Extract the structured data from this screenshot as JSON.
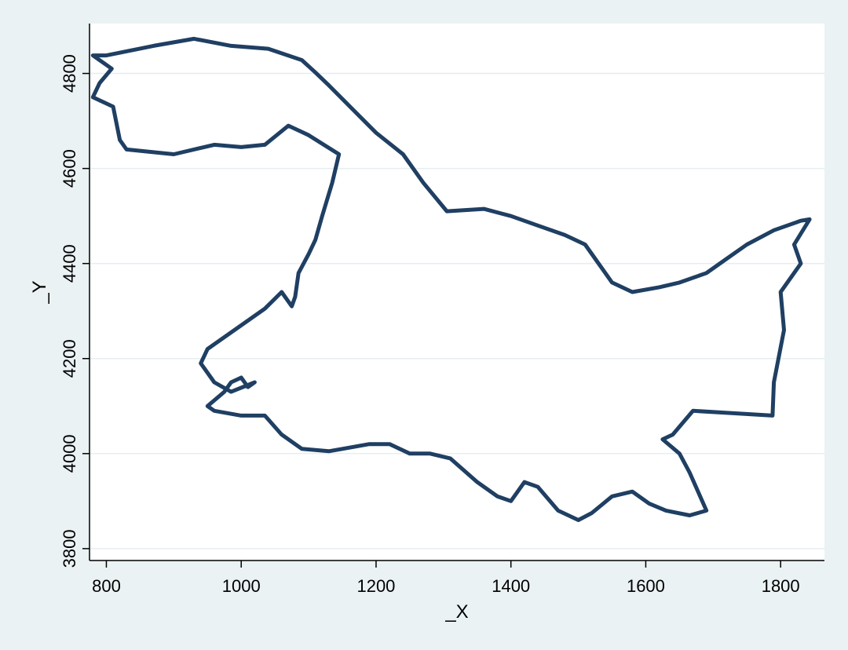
{
  "chart_data": {
    "type": "line",
    "title": "",
    "xlabel": "_X",
    "ylabel": "_Y",
    "xlim": [
      775,
      1865
    ],
    "ylim": [
      3775,
      4905
    ],
    "x_ticks": [
      800,
      1000,
      1200,
      1400,
      1600,
      1800
    ],
    "x_tick_labels": [
      "800",
      "1000",
      "1200",
      "1400",
      "1600",
      "1800"
    ],
    "y_ticks": [
      3800,
      4000,
      4200,
      4400,
      4600,
      4800
    ],
    "y_tick_labels": [
      "3800",
      "4000",
      "4200",
      "4400",
      "4600",
      "4800"
    ],
    "grid": "horizontal",
    "legend": "none",
    "colors": {
      "line": "#1f3f63",
      "plot_background": "#ffffff",
      "page_background": "#eaf2f3",
      "gridline": "#e6eef0"
    },
    "series": [
      {
        "points": [
          [
            800,
            4838
          ],
          [
            870,
            4858
          ],
          [
            930,
            4873
          ],
          [
            985,
            4858
          ],
          [
            1040,
            4852
          ],
          [
            1090,
            4828
          ],
          [
            1110,
            4802
          ],
          [
            1130,
            4775
          ],
          [
            1165,
            4725
          ],
          [
            1200,
            4675
          ],
          [
            1240,
            4630
          ],
          [
            1270,
            4570
          ],
          [
            1305,
            4510
          ],
          [
            1360,
            4515
          ],
          [
            1400,
            4500
          ],
          [
            1440,
            4480
          ],
          [
            1480,
            4460
          ],
          [
            1510,
            4440
          ],
          [
            1550,
            4360
          ],
          [
            1580,
            4340
          ],
          [
            1620,
            4350
          ],
          [
            1650,
            4360
          ],
          [
            1690,
            4380
          ],
          [
            1720,
            4410
          ],
          [
            1750,
            4440
          ],
          [
            1790,
            4470
          ],
          [
            1830,
            4490
          ],
          [
            1843,
            4493
          ],
          [
            1820,
            4440
          ],
          [
            1830,
            4400
          ],
          [
            1800,
            4340
          ],
          [
            1805,
            4260
          ],
          [
            1790,
            4150
          ],
          [
            1788,
            4080
          ],
          [
            1730,
            4085
          ],
          [
            1670,
            4090
          ],
          [
            1640,
            4040
          ],
          [
            1625,
            4030
          ],
          [
            1650,
            4000
          ],
          [
            1665,
            3960
          ],
          [
            1690,
            3880
          ],
          [
            1665,
            3870
          ],
          [
            1630,
            3880
          ],
          [
            1605,
            3895
          ],
          [
            1580,
            3920
          ],
          [
            1550,
            3910
          ],
          [
            1520,
            3875
          ],
          [
            1500,
            3860
          ],
          [
            1470,
            3880
          ],
          [
            1440,
            3930
          ],
          [
            1420,
            3940
          ],
          [
            1400,
            3900
          ],
          [
            1380,
            3910
          ],
          [
            1350,
            3940
          ],
          [
            1310,
            3990
          ],
          [
            1280,
            4000
          ],
          [
            1250,
            4000
          ],
          [
            1220,
            4020
          ],
          [
            1190,
            4020
          ],
          [
            1150,
            4010
          ],
          [
            1130,
            4005
          ],
          [
            1090,
            4010
          ],
          [
            1060,
            4040
          ],
          [
            1035,
            4080
          ],
          [
            1000,
            4080
          ],
          [
            960,
            4090
          ],
          [
            950,
            4100
          ],
          [
            975,
            4130
          ],
          [
            985,
            4150
          ],
          [
            1000,
            4160
          ],
          [
            1010,
            4140
          ],
          [
            1020,
            4150
          ],
          [
            985,
            4130
          ],
          [
            960,
            4150
          ],
          [
            940,
            4190
          ],
          [
            950,
            4220
          ],
          [
            990,
            4260
          ],
          [
            1035,
            4305
          ],
          [
            1060,
            4340
          ],
          [
            1075,
            4310
          ],
          [
            1080,
            4330
          ],
          [
            1085,
            4380
          ],
          [
            1100,
            4420
          ],
          [
            1110,
            4450
          ],
          [
            1120,
            4500
          ],
          [
            1135,
            4570
          ],
          [
            1145,
            4630
          ],
          [
            1100,
            4670
          ],
          [
            1070,
            4690
          ],
          [
            1035,
            4650
          ],
          [
            1000,
            4645
          ],
          [
            960,
            4650
          ],
          [
            900,
            4630
          ],
          [
            830,
            4640
          ],
          [
            820,
            4660
          ],
          [
            810,
            4730
          ],
          [
            780,
            4750
          ],
          [
            790,
            4780
          ],
          [
            808,
            4810
          ],
          [
            780,
            4838
          ],
          [
            800,
            4838
          ]
        ]
      }
    ]
  }
}
